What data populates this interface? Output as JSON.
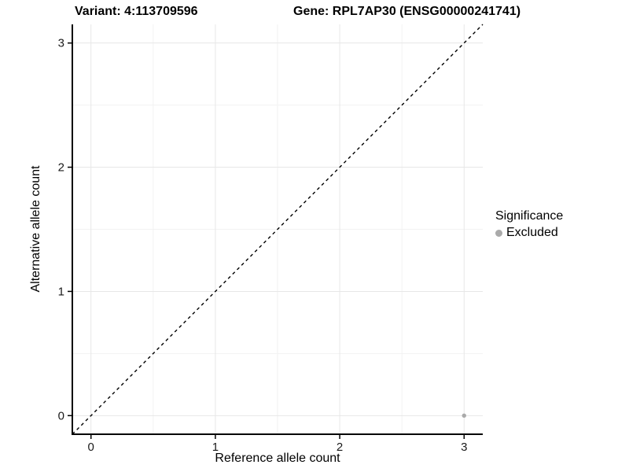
{
  "chart_data": {
    "type": "scatter",
    "title_left": "Variant: 4:113709596",
    "title_right": "Gene: RPL7AP30 (ENSG00000241741)",
    "xlabel": "Reference allele count",
    "ylabel": "Alternative allele count",
    "xlim": [
      -0.15,
      3.15
    ],
    "ylim": [
      -0.15,
      3.15
    ],
    "xticks": [
      0,
      1,
      2,
      3
    ],
    "yticks": [
      0,
      1,
      2,
      3
    ],
    "x_minor_ticks": [
      0.5,
      1.5,
      2.5
    ],
    "y_minor_ticks": [
      0.5,
      1.5,
      2.5
    ],
    "grid": "major+minor",
    "colors": {
      "background": "#ffffff",
      "major_grid": "#e7e7e7",
      "minor_grid": "#f2f2f2",
      "axis_line": "#000000",
      "tick_label": "#1a1a1a",
      "identity_line": "#000000"
    },
    "identity_line": {
      "style": "dashed",
      "from": [
        -0.15,
        -0.15
      ],
      "to": [
        3.15,
        3.15
      ]
    },
    "series": [
      {
        "name": "Excluded",
        "color": "#aaaaaa",
        "points": [
          {
            "x": 3,
            "y": 0
          }
        ]
      }
    ],
    "legend": {
      "title": "Significance",
      "position": "right",
      "items": [
        {
          "label": "Excluded",
          "color": "#aaaaaa",
          "marker": "circle"
        }
      ]
    }
  }
}
